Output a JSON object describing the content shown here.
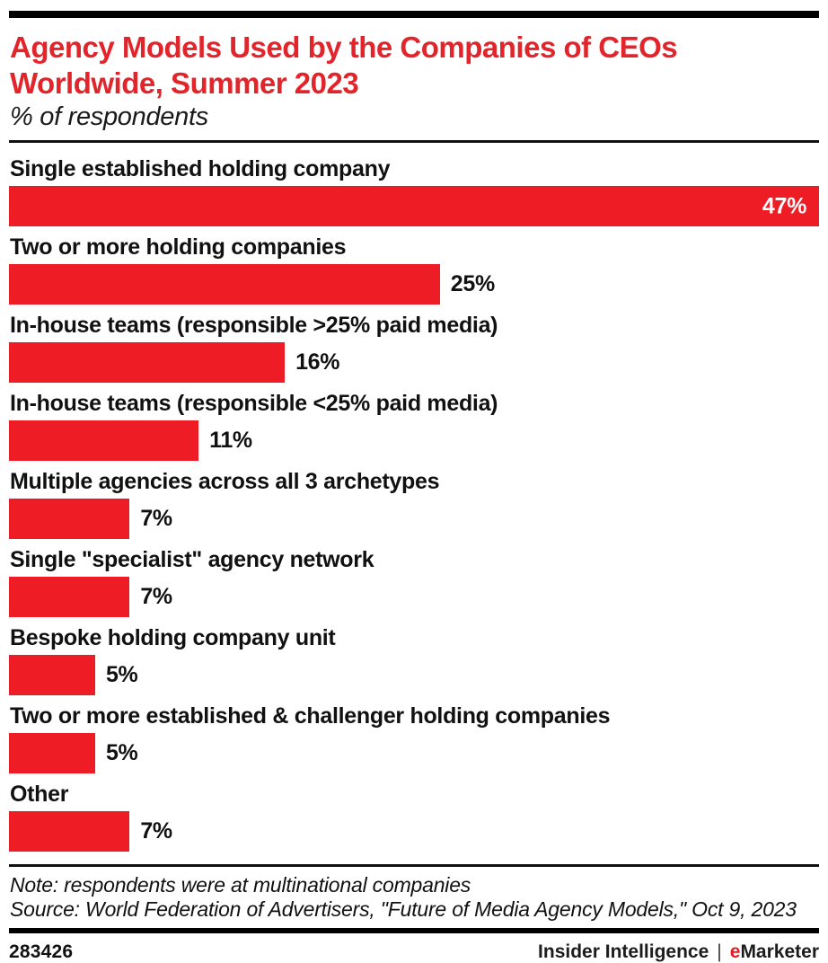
{
  "header": {
    "title": "Agency Models Used by the Companies of CEOs\nWorldwide, Summer 2023",
    "subtitle": "% of respondents"
  },
  "chart_data": {
    "type": "bar",
    "orientation": "horizontal",
    "title": "Agency Models Used by the Companies of CEOs Worldwide, Summer 2023",
    "unit_label": "% of respondents",
    "xlim": [
      0,
      47
    ],
    "grid": false,
    "legend": "none",
    "bar_color": "#ee1c25",
    "categories": [
      "Single established holding company",
      "Two or more holding companies",
      "In-house teams (responsible >25% paid media)",
      "In-house teams (responsible <25% paid media)",
      "Multiple agencies across all 3 archetypes",
      "Single \"specialist\" agency network",
      "Bespoke holding company unit",
      "Two or more established & challenger holding companies",
      "Other"
    ],
    "values": [
      47,
      25,
      16,
      11,
      7,
      7,
      5,
      5,
      7
    ],
    "value_labels": [
      "47%",
      "25%",
      "16%",
      "11%",
      "7%",
      "7%",
      "5%",
      "5%",
      "7%"
    ]
  },
  "footer": {
    "note": "Note: respondents were at multinational companies",
    "source": "Source: World Federation of Advertisers, \"Future of Media Agency Models,\" Oct 9, 2023",
    "chart_id": "283426",
    "brand": {
      "insider": "Insider Intelligence",
      "divider": "|",
      "emarketer_e": "e",
      "emarketer_rest": "Marketer"
    }
  },
  "colors": {
    "title_red": "#e2242b",
    "bar_red": "#ee1c25",
    "emarketer_e_red": "#e8191f",
    "text_black": "#111111",
    "inside_value_white": "#ffffff"
  }
}
